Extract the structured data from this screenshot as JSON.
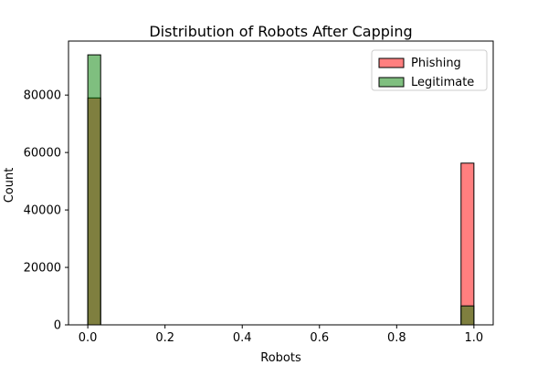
{
  "chart_data": {
    "type": "bar",
    "title": "Distribution of Robots After Capping",
    "xlabel": "Robots",
    "ylabel": "Count",
    "xlim": [
      -0.05,
      1.05
    ],
    "ylim": [
      0,
      98800
    ],
    "x_ticks": [
      0.0,
      0.2,
      0.4,
      0.6,
      0.8,
      1.0
    ],
    "x_tick_labels": [
      "0.0",
      "0.2",
      "0.4",
      "0.6",
      "0.8",
      "1.0"
    ],
    "y_ticks": [
      0,
      20000,
      40000,
      60000,
      80000
    ],
    "y_tick_labels": [
      "0",
      "20000",
      "40000",
      "60000",
      "80000"
    ],
    "bin_edges": [
      0.0,
      0.0333,
      0.9667,
      1.0
    ],
    "series": [
      {
        "name": "Phishing",
        "color": "#ff0000",
        "alpha": 0.5,
        "bins": [
          {
            "x0": 0.0,
            "x1": 0.0333,
            "count": 79000
          },
          {
            "x0": 0.9667,
            "x1": 1.0,
            "count": 56300
          }
        ]
      },
      {
        "name": "Legitimate",
        "color": "#008000",
        "alpha": 0.5,
        "bins": [
          {
            "x0": 0.0,
            "x1": 0.0333,
            "count": 94000
          },
          {
            "x0": 0.9667,
            "x1": 1.0,
            "count": 6600
          }
        ]
      }
    ],
    "legend": "top-right",
    "grid": false
  }
}
